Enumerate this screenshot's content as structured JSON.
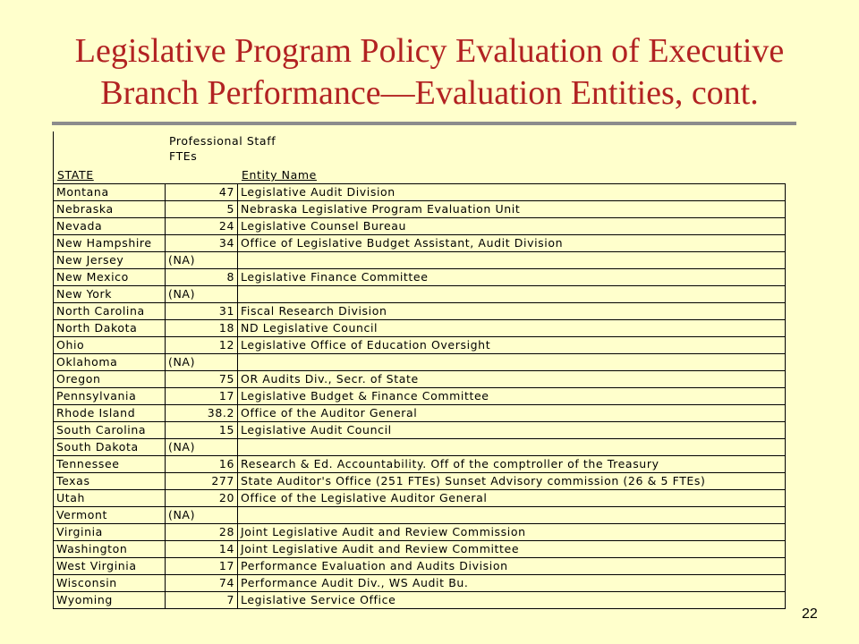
{
  "title": {
    "line1": "Legislative Program Policy Evaluation of Executive",
    "line2": "Branch Performance—Evaluation  Entities, cont."
  },
  "table": {
    "headers": {
      "state": "STATE",
      "fte_line1": "Professional Staff",
      "fte_line2": "FTEs",
      "entity": "Entity Name"
    },
    "rows": [
      {
        "state": "Montana",
        "fte": "47",
        "entity": "Legislative Audit Division"
      },
      {
        "state": "Nebraska",
        "fte": "5",
        "entity": "Nebraska Legislative Program Evaluation Unit"
      },
      {
        "state": "Nevada",
        "fte": "24",
        "entity": "Legislative Counsel Bureau"
      },
      {
        "state": "New Hampshire",
        "fte": "34",
        "entity": "Office of Legislative Budget Assistant, Audit Division"
      },
      {
        "state": "New Jersey",
        "fte": "(NA)",
        "entity": ""
      },
      {
        "state": "New Mexico",
        "fte": "8",
        "entity": "Legislative Finance Committee"
      },
      {
        "state": "New York",
        "fte": "(NA)",
        "entity": ""
      },
      {
        "state": "North Carolina",
        "fte": "31",
        "entity": "Fiscal Research Division"
      },
      {
        "state": "North Dakota",
        "fte": "18",
        "entity": "ND Legislative Council"
      },
      {
        "state": "Ohio",
        "fte": "12",
        "entity": "Legislative Office of Education Oversight"
      },
      {
        "state": "Oklahoma",
        "fte": "(NA)",
        "entity": ""
      },
      {
        "state": "Oregon",
        "fte": "75",
        "entity": "OR Audits Div., Secr. of State"
      },
      {
        "state": "Pennsylvania",
        "fte": "17",
        "entity": "Legislative Budget & Finance Committee"
      },
      {
        "state": "Rhode Island",
        "fte": "38.2",
        "entity": "Office of the Auditor General"
      },
      {
        "state": "South Carolina",
        "fte": "15",
        "entity": "Legislative Audit Council"
      },
      {
        "state": "South Dakota",
        "fte": "(NA)",
        "entity": ""
      },
      {
        "state": "Tennessee",
        "fte": "16",
        "entity": "Research & Ed. Accountability. Off of the comptroller of the Treasury"
      },
      {
        "state": "Texas",
        "fte": "277",
        "entity": "State Auditor's Office (251 FTEs) Sunset Advisory commission (26 & 5 FTEs)"
      },
      {
        "state": "Utah",
        "fte": "20",
        "entity": "Office of the Legislative Auditor General"
      },
      {
        "state": "Vermont",
        "fte": "(NA)",
        "entity": ""
      },
      {
        "state": "Virginia",
        "fte": "28",
        "entity": "Joint Legislative Audit and Review Commission"
      },
      {
        "state": "Washington",
        "fte": "14",
        "entity": "Joint Legislative Audit and Review Committee"
      },
      {
        "state": "West Virginia",
        "fte": "17",
        "entity": "Performance Evaluation and Audits Division"
      },
      {
        "state": "Wisconsin",
        "fte": "74",
        "entity": "Performance Audit Div., WS Audit Bu."
      },
      {
        "state": "Wyoming",
        "fte": "7",
        "entity": "Legislative Service Office"
      }
    ]
  },
  "page_number": "22"
}
